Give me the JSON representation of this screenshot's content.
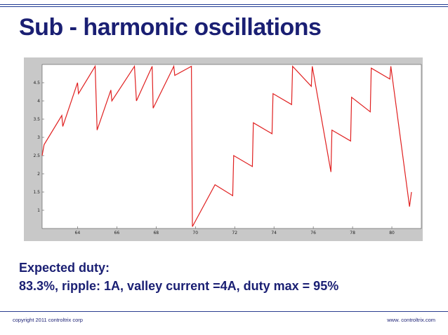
{
  "slide": {
    "title": "Sub - harmonic oscillations",
    "body_line1": "Expected duty:",
    "body_line2": "83.3%, ripple: 1A, valley current =4A, duty max = 95%",
    "footer_left": "copyright 2011 controltrix corp",
    "footer_right": "www. controltrix.com"
  },
  "colors": {
    "title": "#1a1f73",
    "rule": "#1f3a93",
    "trace": "#e02020",
    "figure_bg": "#c8c8c8",
    "plot_bg": "#ffffff"
  },
  "chart_data": {
    "type": "line",
    "title": "",
    "xlabel": "",
    "ylabel": "",
    "xlim": [
      62.2,
      81.5
    ],
    "ylim": [
      0.5,
      5.0
    ],
    "xticks": [
      64,
      66,
      68,
      70,
      72,
      74,
      76,
      78,
      80
    ],
    "yticks": [
      1,
      1.5,
      2,
      2.5,
      3,
      3.5,
      4,
      4.5
    ],
    "grid": false,
    "series": [
      {
        "x": [
          62.2,
          62.3,
          63.2,
          63.25,
          64.0,
          64.05,
          64.9,
          65.0,
          65.7,
          65.75,
          66.9,
          67.0,
          67.8,
          67.85,
          68.9,
          68.95,
          69.8,
          69.85,
          71.0,
          71.9,
          71.95,
          72.9,
          72.95,
          73.9,
          73.95,
          74.9,
          74.95,
          75.9,
          75.95,
          76.9,
          76.95,
          77.9,
          77.95,
          78.9,
          78.95,
          79.9,
          79.95,
          80.9,
          81.0
        ],
        "y": [
          2.5,
          2.8,
          3.6,
          3.3,
          4.5,
          4.2,
          4.95,
          3.2,
          4.3,
          4.0,
          4.95,
          4.0,
          4.95,
          3.8,
          4.95,
          4.7,
          4.95,
          0.55,
          1.7,
          1.4,
          2.5,
          2.2,
          3.4,
          3.1,
          4.2,
          3.9,
          4.95,
          4.4,
          4.95,
          2.05,
          3.2,
          2.9,
          4.1,
          3.7,
          4.9,
          4.6,
          4.95,
          1.1,
          1.5
        ],
        "_x_note": "placeholder"
      }
    ]
  }
}
